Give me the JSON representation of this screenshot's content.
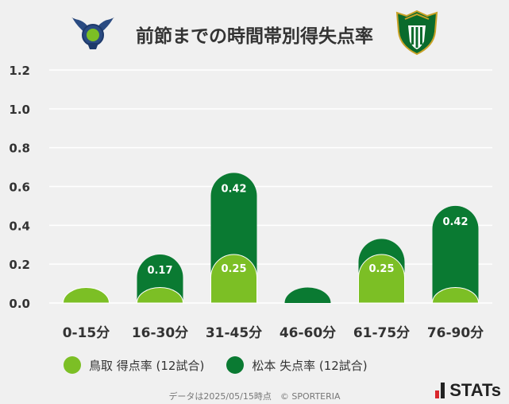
{
  "title": "前節までの時間帯別得失点率",
  "colors": {
    "background": "#f0f0f0",
    "home": "#7cbf25",
    "away": "#0a7a32",
    "grid": "#ffffff",
    "axis_text": "#333333"
  },
  "crests": {
    "home_icon": "tottori-eagle-crest-icon",
    "away_icon": "matsumoto-shield-crest-icon"
  },
  "chart_data": {
    "type": "bar",
    "categories": [
      "0-15分",
      "16-30分",
      "31-45分",
      "46-60分",
      "61-75分",
      "76-90分"
    ],
    "series": [
      {
        "name": "鳥取 得点率 (12試合)",
        "values": [
          0.08,
          0.08,
          0.25,
          0.0,
          0.25,
          0.08
        ],
        "labels": [
          "",
          "",
          "0.25",
          "",
          "0.25",
          ""
        ]
      },
      {
        "name": "松本 失点率 (12試合)",
        "values": [
          0.08,
          0.25,
          0.67,
          0.08,
          0.33,
          0.5
        ],
        "labels": [
          "",
          "0.17",
          "0.42",
          "",
          "",
          "0.42"
        ]
      }
    ],
    "yticks": [
      "0.0",
      "0.2",
      "0.4",
      "0.6",
      "0.8",
      "1.0",
      "1.2"
    ],
    "ylim": [
      0,
      1.2
    ],
    "grid": true,
    "legend": "bottom"
  },
  "footer": {
    "source": "データは2025/05/15時点　© SPORTERIA",
    "brand": "STATs"
  }
}
